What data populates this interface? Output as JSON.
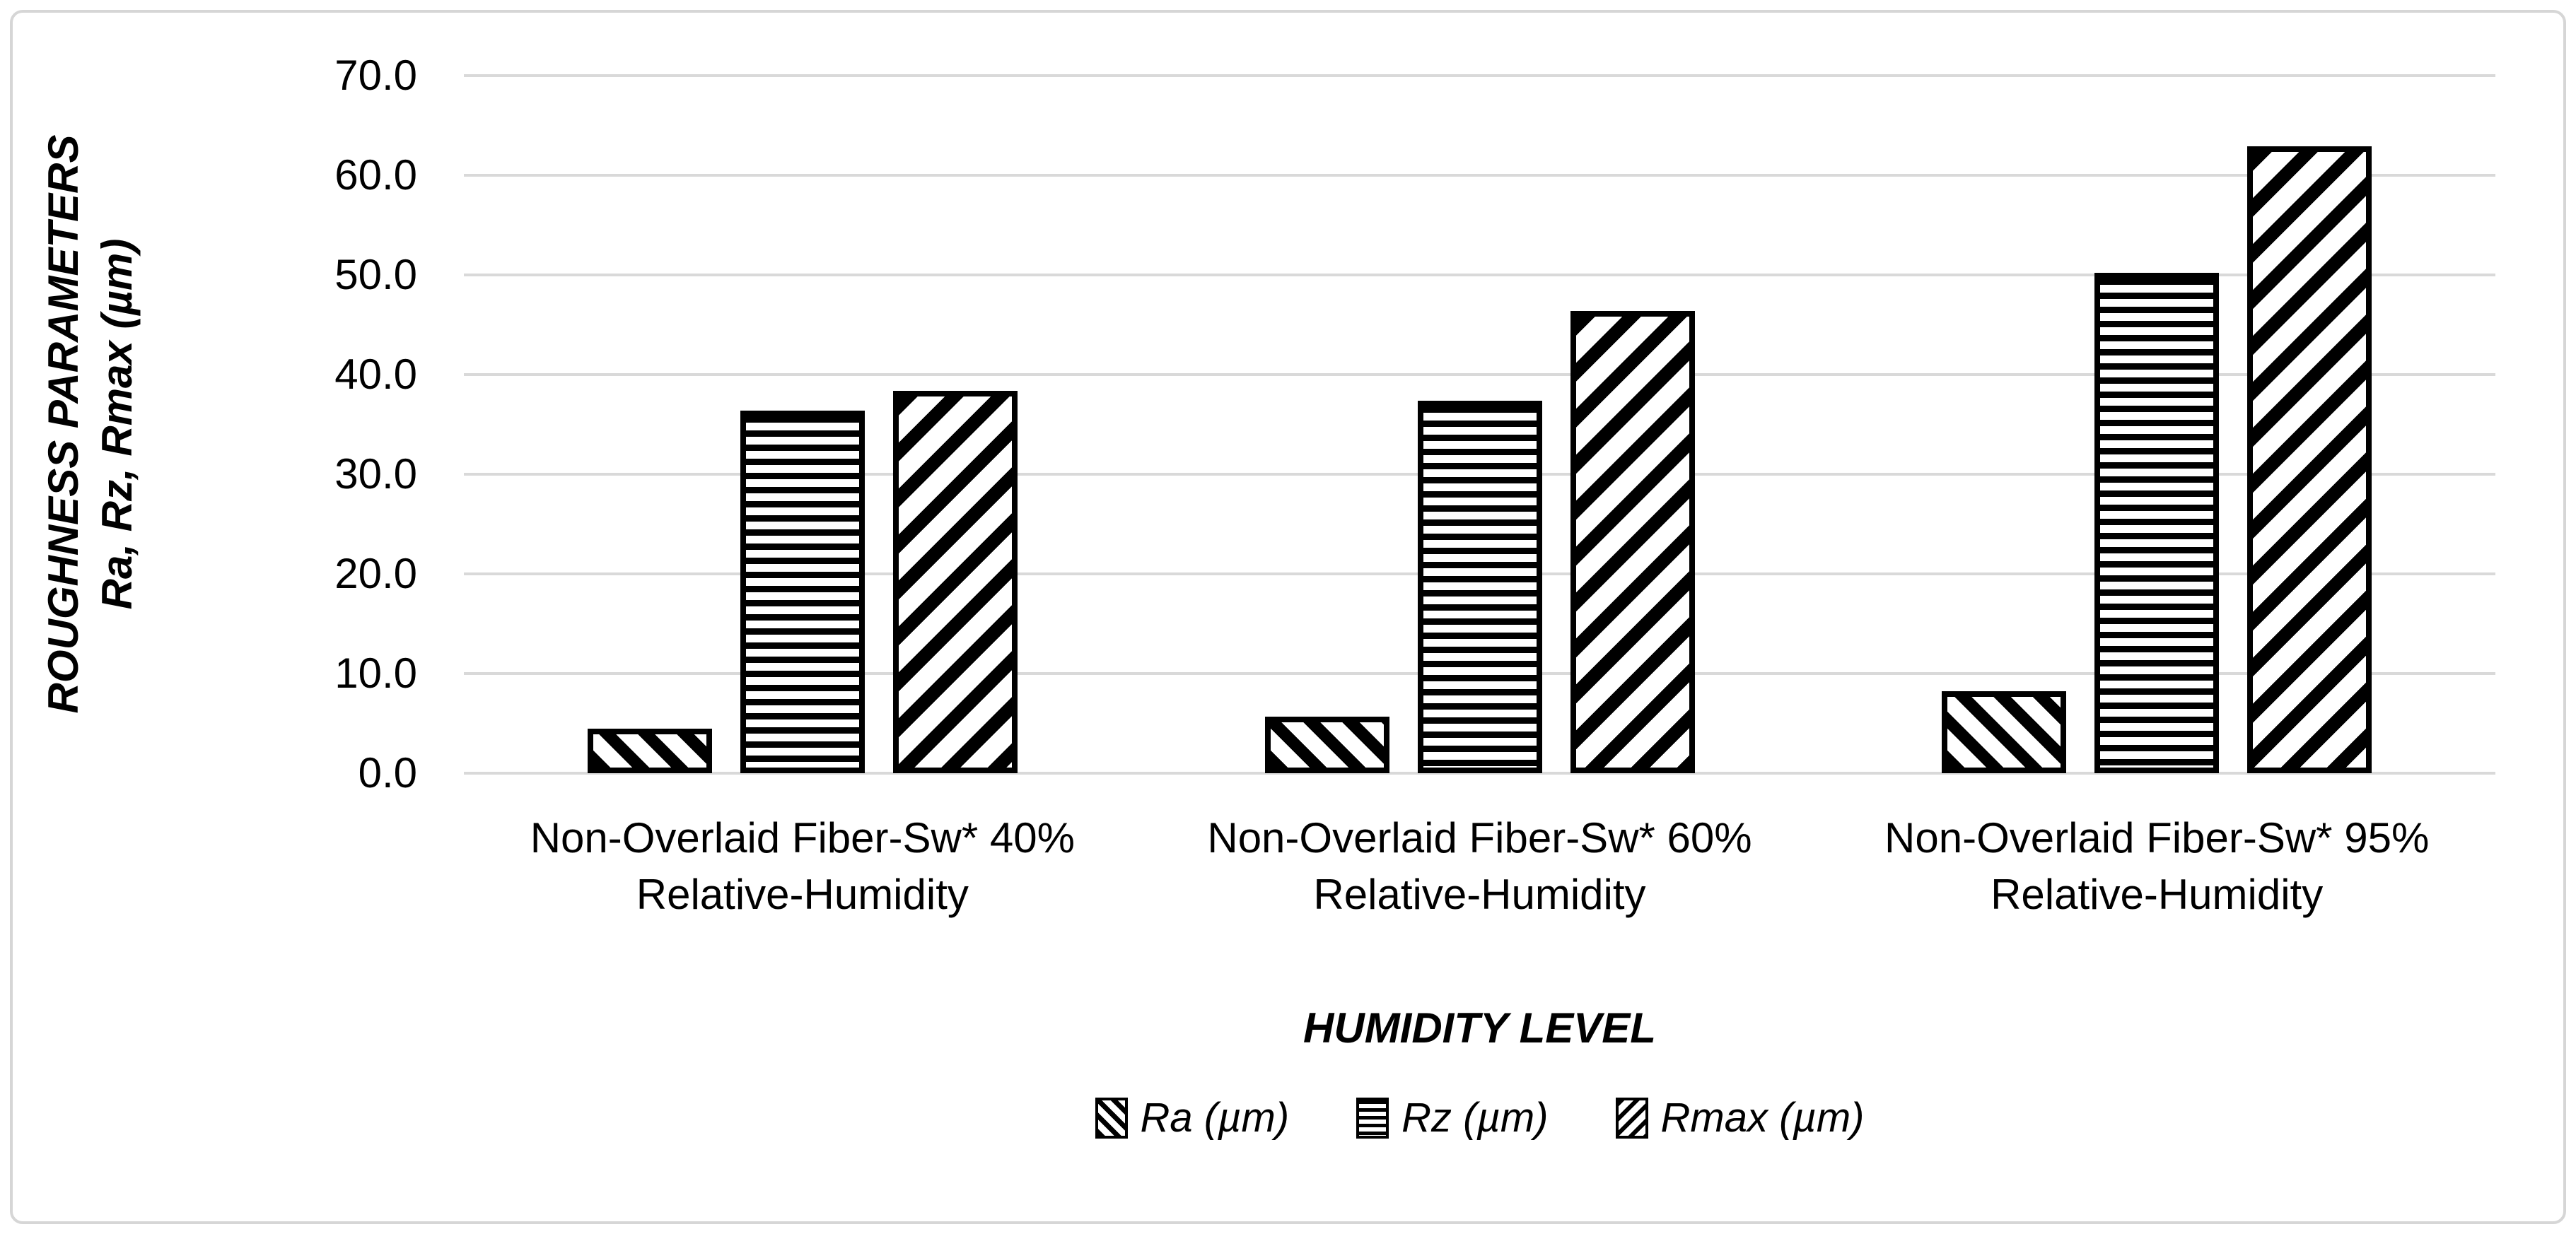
{
  "chart_data": {
    "type": "bar",
    "title": "",
    "x_axis": {
      "title": "HUMIDITY LEVEL",
      "categories": [
        "Non-Overlaid Fiber-Sw* 40%\nRelative-Humidity",
        "Non-Overlaid Fiber-Sw* 60%\nRelative-Humidity",
        "Non-Overlaid Fiber-Sw* 95%\nRelative-Humidity"
      ]
    },
    "y_axis": {
      "title_line1": "ROUGHNESS PARAMETERS",
      "title_line2": "Ra, Rz, Rmax (µm)",
      "min": 0,
      "max": 70,
      "step": 10,
      "tick_labels": [
        "70.0",
        "60.0",
        "50.0",
        "40.0",
        "30.0",
        "20.0",
        "10.0",
        "0.0"
      ],
      "grid": true
    },
    "series": [
      {
        "name": "Ra (µm)",
        "pattern": "diagonal-down",
        "values": [
          4.5,
          5.7,
          8.2
        ]
      },
      {
        "name": "Rz (µm)",
        "pattern": "horizontal",
        "values": [
          36.4,
          37.4,
          50.2
        ]
      },
      {
        "name": "Rmax (µm)",
        "pattern": "diagonal-up",
        "values": [
          38.4,
          46.4,
          62.9
        ]
      }
    ],
    "legend_position": "bottom",
    "colors": {
      "bar_stroke": "#000000",
      "bar_background": "#FFFFFF",
      "gridline": "#D9D9D9",
      "chart_border": "#D6D6D6",
      "text": "#000000",
      "background": "#FFFFFF"
    }
  }
}
